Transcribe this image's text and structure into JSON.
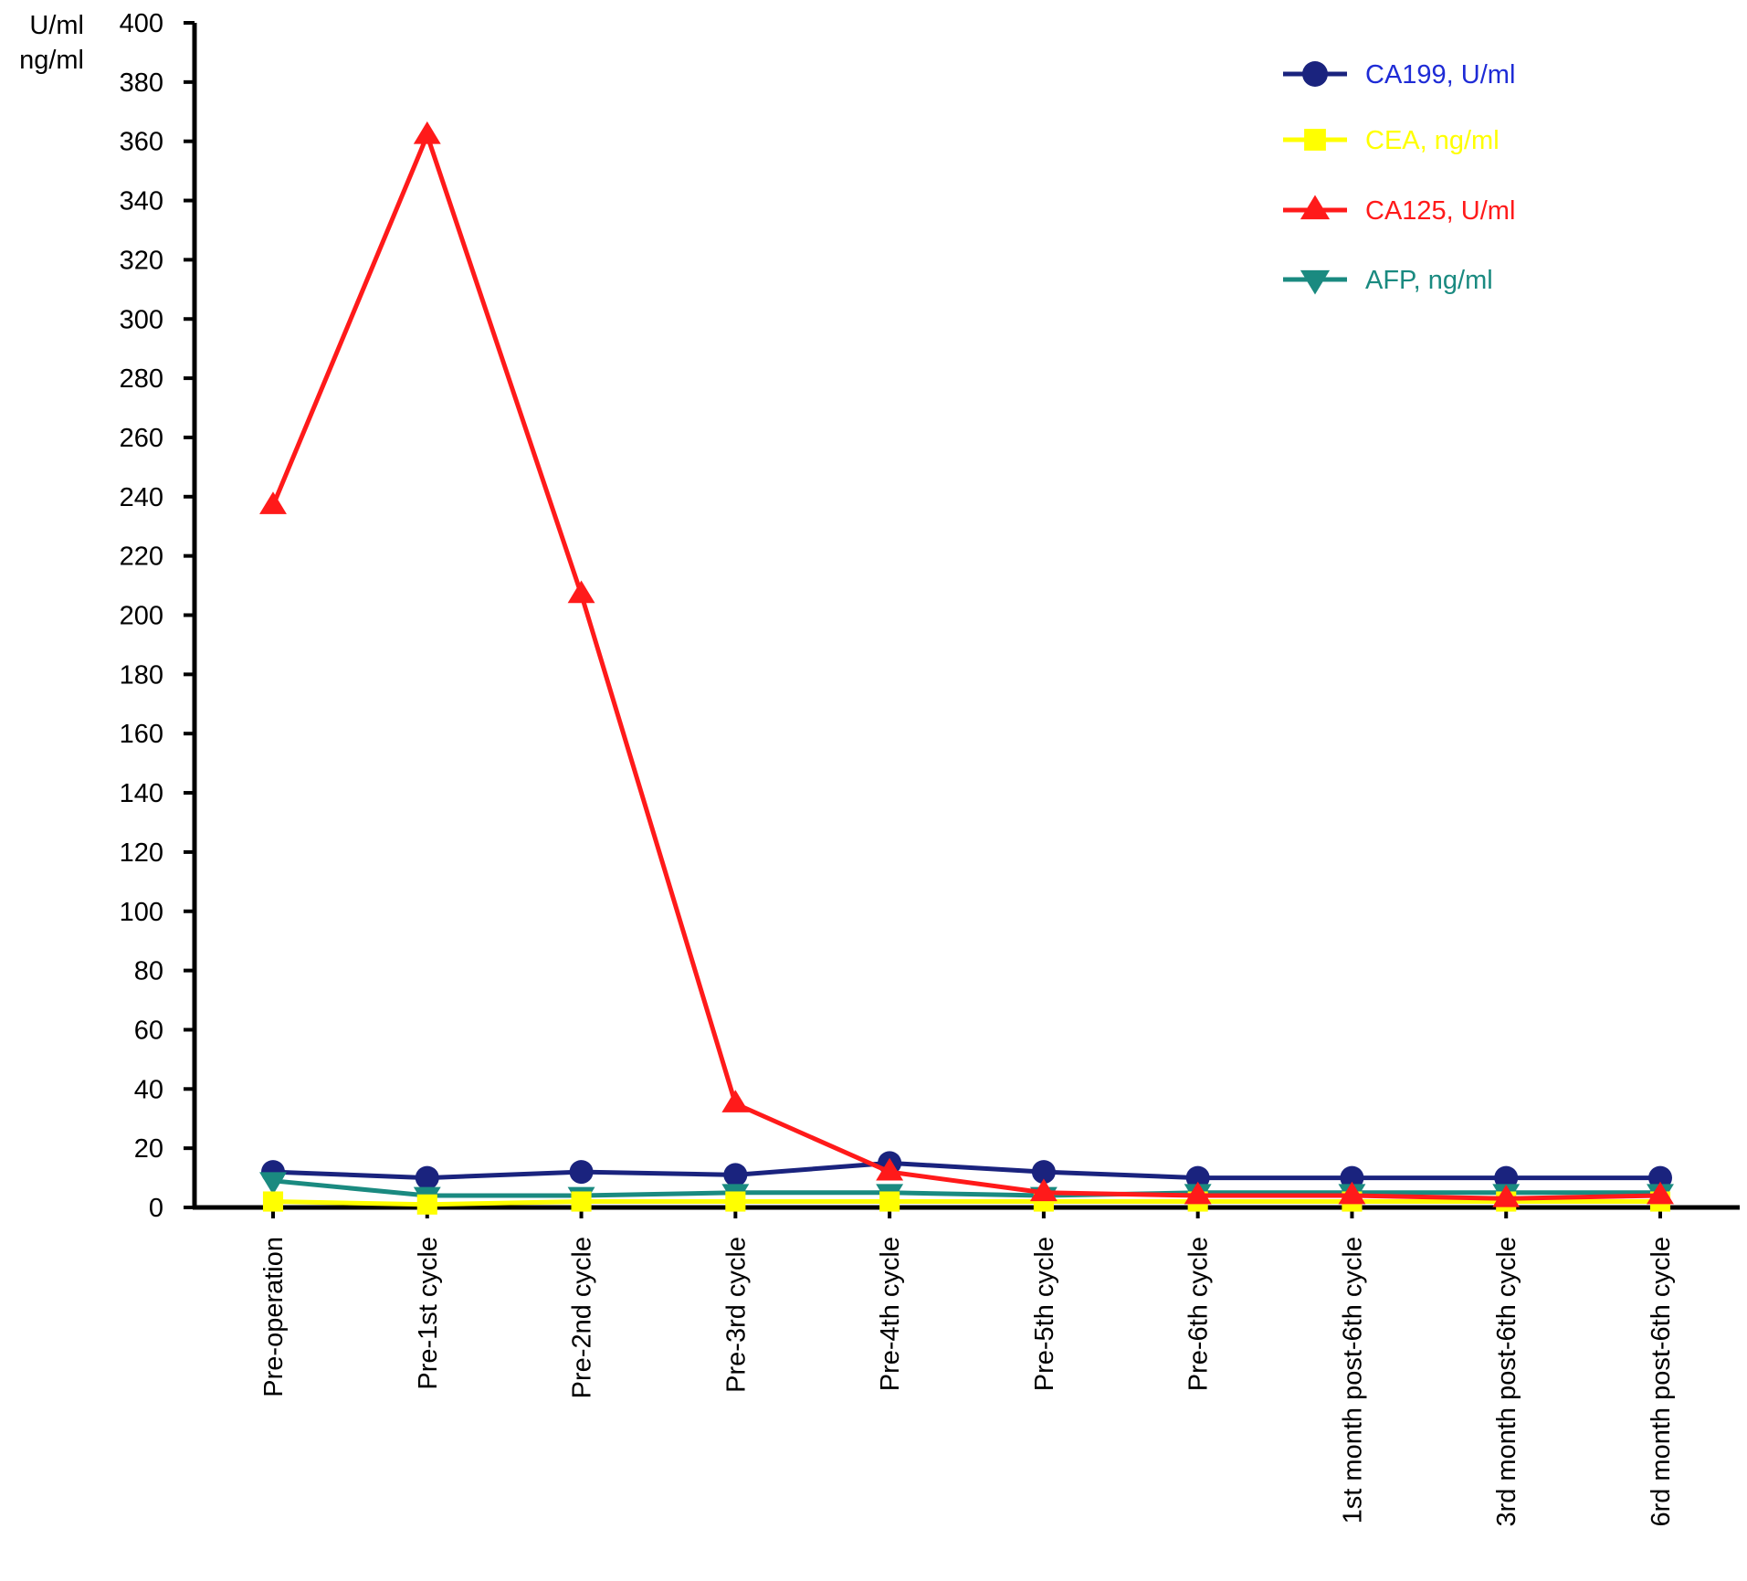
{
  "chart_data": {
    "type": "line",
    "title": "",
    "ylabel_lines": [
      "U/ml",
      "ng/ml"
    ],
    "xlabel": "",
    "ylim": [
      0,
      400
    ],
    "ytick_step": 20,
    "grid": false,
    "legend_position": "top-right",
    "categories": [
      "Pre-operation",
      "Pre-1st cycle",
      "Pre-2nd cycle",
      "Pre-3rd cycle",
      "Pre-4th cycle",
      "Pre-5th cycle",
      "Pre-6th cycle",
      "1st month post-6th cycle",
      "3rd month post-6th cycle",
      "6rd month post-6th cycle"
    ],
    "series": [
      {
        "name": "CA199, U/ml",
        "color": "#1a237e",
        "label_color": "#1e2bd6",
        "marker": "circle",
        "values": [
          12,
          10,
          12,
          11,
          15,
          12,
          10,
          10,
          10,
          10
        ]
      },
      {
        "name": "CEA, ng/ml",
        "color": "#ffff00",
        "label_color": "#ffff00",
        "marker": "square",
        "values": [
          2,
          1,
          2,
          2,
          2,
          2,
          2,
          2,
          2,
          2
        ]
      },
      {
        "name": "CA125, U/ml",
        "color": "#ff1a1a",
        "label_color": "#ff1a1a",
        "marker": "triangle-up",
        "values": [
          237,
          362,
          207,
          35,
          12,
          5,
          4,
          4,
          3,
          4
        ]
      },
      {
        "name": "AFP, ng/ml",
        "color": "#1a8a80",
        "label_color": "#1a8a80",
        "marker": "triangle-down",
        "values": [
          9,
          4,
          4,
          5,
          5,
          4,
          5,
          5,
          5,
          5
        ]
      }
    ]
  }
}
